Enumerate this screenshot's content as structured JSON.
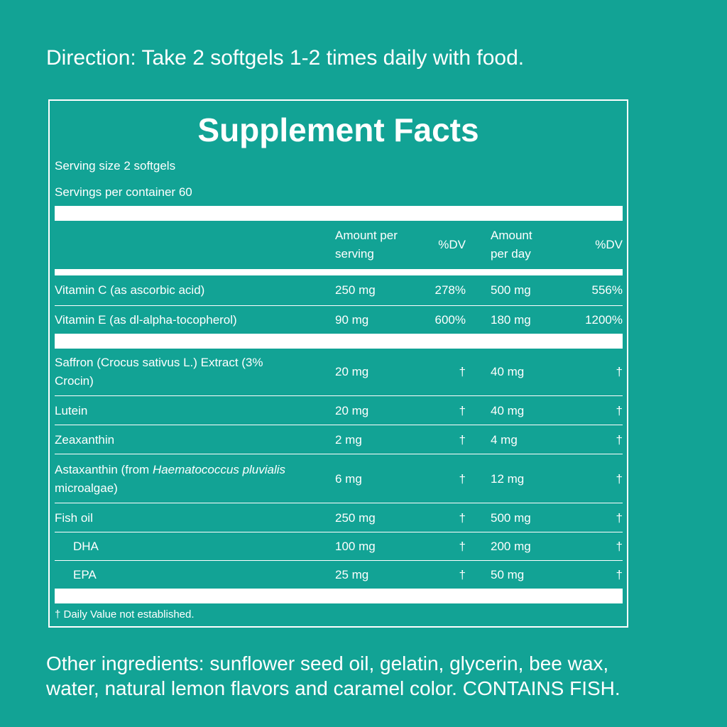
{
  "direction": "Direction: Take 2 softgels 1-2 times daily with food.",
  "table": {
    "title": "Supplement Facts",
    "serving_size": "Serving size 2 softgels",
    "servings_per_container": "Servings per container 60",
    "header": [
      "Amount per serving",
      "%DV",
      "Amount per day",
      "%DV"
    ],
    "rows": [
      [
        "Vitamin C (as ascorbic acid)",
        "250 mg",
        "278%",
        "500 mg",
        "556%"
      ],
      [
        "Vitamin E (as dl-alpha-tocopherol)",
        "90 mg",
        "600%",
        "180 mg",
        "1200%"
      ],
      [
        "Saffron (Crocus sativus L.) Extract (3% Crocin)",
        "20 mg",
        "†",
        "40 mg",
        "†"
      ],
      [
        "Lutein",
        "20 mg",
        "†",
        "40 mg",
        "†"
      ],
      [
        "Zeaxanthin",
        "2 mg",
        "†",
        "4 mg",
        "†"
      ],
      [
        [
          "Astaxanthin (from ",
          "Haematococcus pluvialis",
          " microalgae)"
        ],
        "6 mg",
        "†",
        "12 mg",
        "†"
      ],
      [
        "Fish oil",
        "250 mg",
        "†",
        "500 mg",
        "†"
      ],
      [
        "DHA",
        "100 mg",
        "†",
        "200 mg",
        "†"
      ],
      [
        "EPA",
        "25 mg",
        "†",
        "50 mg",
        "†"
      ]
    ],
    "footnote": "† Daily Value not established."
  },
  "other_ingredients": "Other ingredients: sunflower seed oil, gelatin, glycerin, bee wax, water, natural lemon flavors and caramel color. CONTAINS FISH."
}
